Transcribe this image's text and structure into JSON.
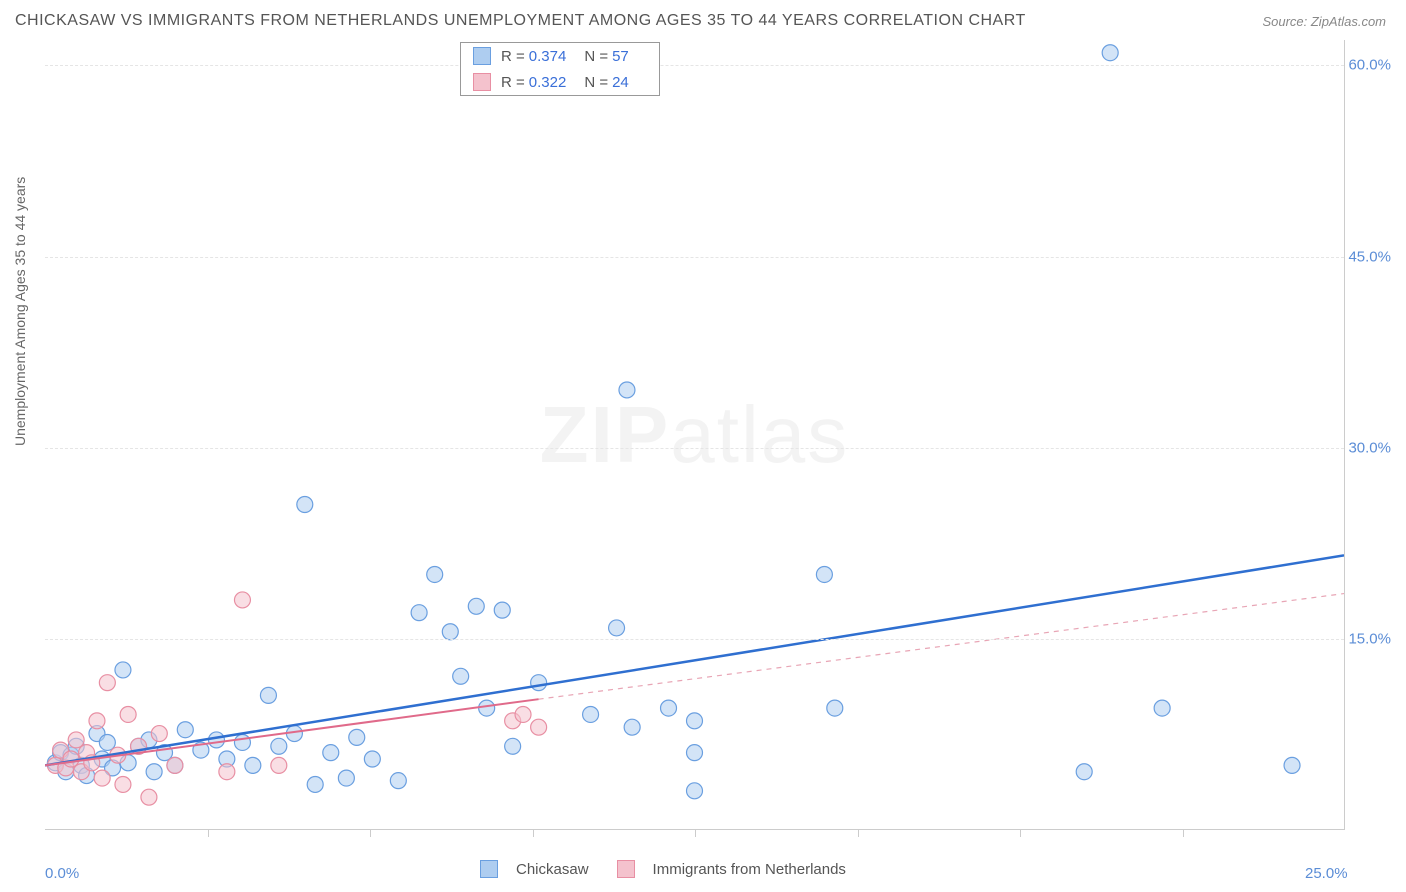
{
  "title": "CHICKASAW VS IMMIGRANTS FROM NETHERLANDS UNEMPLOYMENT AMONG AGES 35 TO 44 YEARS CORRELATION CHART",
  "source": "Source: ZipAtlas.com",
  "y_axis_label": "Unemployment Among Ages 35 to 44 years",
  "watermark_bold": "ZIP",
  "watermark_light": "atlas",
  "chart": {
    "type": "scatter",
    "xlim": [
      0,
      25
    ],
    "ylim": [
      0,
      62
    ],
    "x_ticks": [
      0,
      25
    ],
    "x_tick_labels": [
      "0.0%",
      "25.0%"
    ],
    "x_minor_ticks": [
      3.125,
      6.25,
      9.375,
      12.5,
      15.625,
      18.75,
      21.875
    ],
    "y_ticks": [
      15,
      30,
      45,
      60
    ],
    "y_tick_labels": [
      "15.0%",
      "30.0%",
      "45.0%",
      "60.0%"
    ],
    "grid_color": "#e5e5e5",
    "background_color": "#ffffff",
    "marker_radius": 8,
    "marker_stroke_width": 1.2,
    "series": [
      {
        "name": "Chickasaw",
        "fill": "#aecdf0",
        "stroke": "#6a9fe0",
        "fill_opacity": 0.55,
        "R": "0.374",
        "N": "57",
        "trend": {
          "x1": 0,
          "y1": 5.0,
          "x2": 25,
          "y2": 21.5,
          "color": "#2f6fd0",
          "width": 2.5,
          "dash": "none"
        },
        "trend_ext": null,
        "points": [
          [
            0.2,
            5.2
          ],
          [
            0.3,
            6.0
          ],
          [
            0.4,
            4.5
          ],
          [
            0.5,
            5.8
          ],
          [
            0.6,
            6.5
          ],
          [
            0.7,
            5.0
          ],
          [
            0.8,
            4.2
          ],
          [
            1.0,
            7.5
          ],
          [
            1.1,
            5.5
          ],
          [
            1.2,
            6.8
          ],
          [
            1.3,
            4.8
          ],
          [
            1.5,
            12.5
          ],
          [
            1.6,
            5.2
          ],
          [
            1.8,
            6.5
          ],
          [
            2.0,
            7.0
          ],
          [
            2.1,
            4.5
          ],
          [
            2.3,
            6.0
          ],
          [
            2.5,
            5.0
          ],
          [
            2.7,
            7.8
          ],
          [
            3.0,
            6.2
          ],
          [
            3.3,
            7.0
          ],
          [
            3.5,
            5.5
          ],
          [
            3.8,
            6.8
          ],
          [
            4.0,
            5.0
          ],
          [
            4.3,
            10.5
          ],
          [
            4.5,
            6.5
          ],
          [
            4.8,
            7.5
          ],
          [
            5.0,
            25.5
          ],
          [
            5.2,
            3.5
          ],
          [
            5.5,
            6.0
          ],
          [
            5.8,
            4.0
          ],
          [
            6.0,
            7.2
          ],
          [
            6.3,
            5.5
          ],
          [
            6.8,
            3.8
          ],
          [
            7.2,
            17.0
          ],
          [
            7.5,
            20.0
          ],
          [
            7.8,
            15.5
          ],
          [
            8.0,
            12.0
          ],
          [
            8.3,
            17.5
          ],
          [
            8.5,
            9.5
          ],
          [
            8.8,
            17.2
          ],
          [
            9.0,
            6.5
          ],
          [
            9.5,
            11.5
          ],
          [
            10.5,
            9.0
          ],
          [
            11.0,
            15.8
          ],
          [
            11.2,
            34.5
          ],
          [
            11.3,
            8.0
          ],
          [
            12.0,
            9.5
          ],
          [
            12.5,
            3.0
          ],
          [
            12.5,
            8.5
          ],
          [
            12.5,
            6.0
          ],
          [
            15.0,
            20.0
          ],
          [
            15.2,
            9.5
          ],
          [
            20.0,
            4.5
          ],
          [
            21.5,
            9.5
          ],
          [
            20.5,
            61.0
          ],
          [
            24.0,
            5.0
          ]
        ]
      },
      {
        "name": "Immigrants from Netherlands",
        "fill": "#f4c2cd",
        "stroke": "#e88fa3",
        "fill_opacity": 0.55,
        "R": "0.322",
        "N": "24",
        "trend": {
          "x1": 0,
          "y1": 5.0,
          "x2": 9.5,
          "y2": 10.2,
          "color": "#e06a8a",
          "width": 2,
          "dash": "none"
        },
        "trend_ext": {
          "x1": 9.5,
          "y1": 10.2,
          "x2": 25,
          "y2": 18.5,
          "color": "#e8a5b5",
          "width": 1.2,
          "dash": "5,5"
        },
        "points": [
          [
            0.2,
            5.0
          ],
          [
            0.3,
            6.2
          ],
          [
            0.4,
            4.8
          ],
          [
            0.5,
            5.5
          ],
          [
            0.6,
            7.0
          ],
          [
            0.7,
            4.5
          ],
          [
            0.8,
            6.0
          ],
          [
            0.9,
            5.2
          ],
          [
            1.0,
            8.5
          ],
          [
            1.1,
            4.0
          ],
          [
            1.2,
            11.5
          ],
          [
            1.4,
            5.8
          ],
          [
            1.5,
            3.5
          ],
          [
            1.6,
            9.0
          ],
          [
            1.8,
            6.5
          ],
          [
            2.0,
            2.5
          ],
          [
            2.2,
            7.5
          ],
          [
            2.5,
            5.0
          ],
          [
            3.5,
            4.5
          ],
          [
            3.8,
            18.0
          ],
          [
            4.5,
            5.0
          ],
          [
            9.0,
            8.5
          ],
          [
            9.5,
            8.0
          ],
          [
            9.2,
            9.0
          ]
        ]
      }
    ]
  },
  "bottom_legend": {
    "series1": "Chickasaw",
    "series2": "Immigrants from Netherlands"
  },
  "stats_labels": {
    "R": "R =",
    "N": "N ="
  }
}
